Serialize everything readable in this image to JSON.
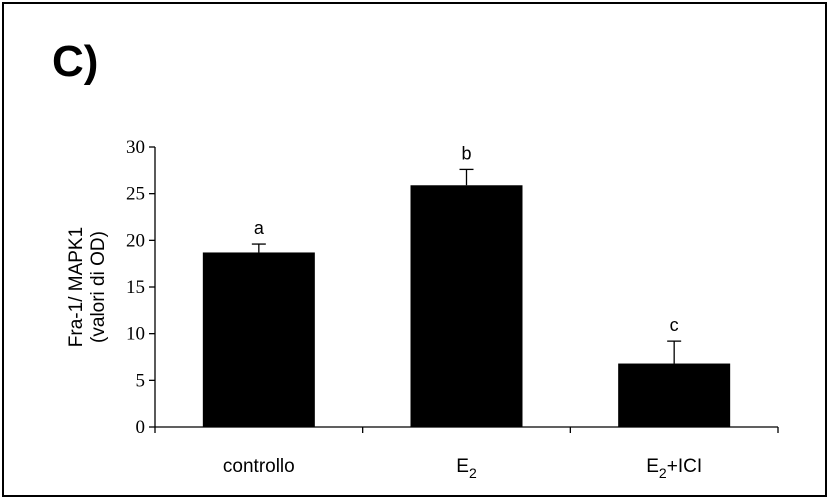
{
  "panel_label": "C)",
  "chart_data": {
    "type": "bar",
    "categories": [
      "controllo",
      "E2",
      "E2+ICI"
    ],
    "category_display": [
      {
        "base": "controllo",
        "sub": "",
        "rest": ""
      },
      {
        "base": "E",
        "sub": "2",
        "rest": ""
      },
      {
        "base": "E",
        "sub": "2",
        "rest": "+ICI"
      }
    ],
    "values": [
      18.7,
      25.9,
      6.8
    ],
    "errors": [
      0.9,
      1.7,
      2.4
    ],
    "significance_labels": [
      "a",
      "b",
      "c"
    ],
    "ylabel_lines": [
      "Fra-1/ MAPK1",
      "(valori di OD)"
    ],
    "ylim": [
      0,
      30
    ],
    "yticks": [
      0,
      5,
      10,
      15,
      20,
      25,
      30
    ],
    "bar_color": "#000000",
    "grid": false,
    "legend": "none"
  }
}
